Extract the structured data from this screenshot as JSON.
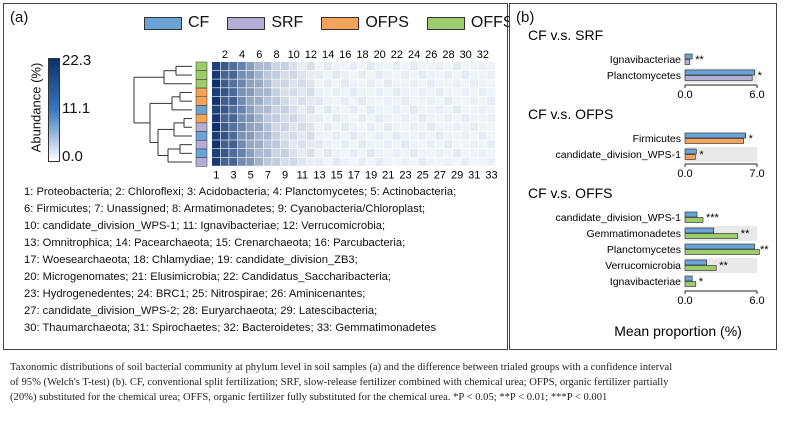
{
  "panel_a": {
    "letter": "(a)",
    "legend": [
      {
        "label": "CF",
        "color": "#6aa3d6"
      },
      {
        "label": "SRF",
        "color": "#b4aed6"
      },
      {
        "label": "OFPS",
        "color": "#f4a35a"
      },
      {
        "label": "OFFS",
        "color": "#9ccc6b"
      }
    ],
    "colorbar": {
      "label": "Abundance (%)",
      "ticks": [
        "22.3",
        "11.1",
        "0.0"
      ]
    },
    "heatmap": {
      "columns": 33,
      "top_ticks": [
        "2",
        "4",
        "6",
        "8",
        "10",
        "12",
        "14",
        "16",
        "18",
        "20",
        "22",
        "24",
        "26",
        "28",
        "30",
        "32"
      ],
      "bottom_ticks": [
        "1",
        "3",
        "5",
        "7",
        "9",
        "11",
        "13",
        "15",
        "17",
        "19",
        "21",
        "23",
        "25",
        "27",
        "29",
        "31",
        "33"
      ],
      "row_groups": [
        "OFFS",
        "OFFS",
        "OFFS",
        "OFPS",
        "OFPS",
        "CF",
        "OFPS",
        "SRF",
        "CF",
        "SRF",
        "CF",
        "SRF"
      ]
    },
    "phyla_lines": [
      "1: Proteobacteria; 2: Chloroflexi; 3: Acidobacteria; 4: Planctomycetes; 5: Actinobacteria;",
      "6: Firmicutes; 7: Unassigned; 8: Armatimonadetes; 9: Cyanobacteria/Chloroplast;",
      "10: candidate_division_WPS-1; 11: Ignavibacteriae; 12: Verrucomicrobia;",
      "13: Omnitrophica; 14: Pacearchaeota; 15: Crenarchaeota; 16: Parcubacteria;",
      "17: Woesearchaeota; 18: Chlamydiae; 19: candidate_division_ZB3;",
      "20: Microgenomates; 21: Elusimicrobia; 22: Candidatus_Saccharibacteria;",
      "23: Hydrogenedentes; 24: BRC1; 25: Nitrospirae; 26: Aminicenantes;",
      "27: candidate_division_WPS-2; 28: Euryarchaeota; 29: Latescibacteria;",
      "30: Thaumarchaeota; 31: Spirochaetes; 32: Bacteroidetes; 33: Gemmatimonadetes"
    ]
  },
  "panel_b": {
    "letter": "(b)",
    "xlabel": "Mean proportion (%)"
  },
  "chart_data": [
    {
      "type": "bar",
      "title": "CF v.s. SRF",
      "categories": [
        "Ignavibacteriae",
        "Planctomycetes"
      ],
      "series": [
        {
          "name": "CF",
          "values": [
            0.6,
            5.8
          ],
          "color": "#6aa3d6"
        },
        {
          "name": "SRF",
          "values": [
            0.4,
            5.6
          ],
          "color": "#b4aed6"
        }
      ],
      "significance": [
        "**",
        "*"
      ],
      "xlim": [
        0.0,
        6.0
      ],
      "xticks": [
        "0.0",
        "6.0"
      ]
    },
    {
      "type": "bar",
      "title": "CF v.s. OFPS",
      "categories": [
        "Firmicutes",
        "candidate_division_WPS-1"
      ],
      "series": [
        {
          "name": "CF",
          "values": [
            5.9,
            1.1
          ],
          "color": "#6aa3d6"
        },
        {
          "name": "OFPS",
          "values": [
            5.7,
            1.0
          ],
          "color": "#f4a35a"
        }
      ],
      "significance": [
        "*",
        "*"
      ],
      "xlim": [
        0.0,
        7.0
      ],
      "xticks": [
        "0.0",
        "7.0"
      ]
    },
    {
      "type": "bar",
      "title": "CF v.s. OFFS",
      "categories": [
        "candidate_division_WPS-1",
        "Gemmatimonadetes",
        "Planctomycetes",
        "Verrucomicrobia",
        "Ignavibacteriae"
      ],
      "series": [
        {
          "name": "CF",
          "values": [
            1.0,
            2.4,
            5.8,
            1.8,
            0.6
          ],
          "color": "#6aa3d6"
        },
        {
          "name": "OFFS",
          "values": [
            1.5,
            4.4,
            6.2,
            2.6,
            0.9
          ],
          "color": "#9ccc6b"
        }
      ],
      "significance": [
        "***",
        "**",
        "**",
        "**",
        "*"
      ],
      "xlim": [
        0.0,
        6.0
      ],
      "xticks": [
        "0.0",
        "6.0"
      ]
    }
  ],
  "caption": {
    "line1": "Taxonomic distributions of soil bacterial community at phylum level in soil samples (a) and the difference between trialed groups with a confidence interval",
    "line2": "of 95% (Welch's T-test) (b). CF, conventional split fertilization; SRF, slow-release fertilizer combined with chemical urea; OFPS, organic fertilizer partially",
    "line3": "(20%) substituted for the chemical urea; OFFS, organic fertilizer fully substituted for the chemical urea. *P < 0.05; **P < 0.01; ***P < 0.001"
  }
}
